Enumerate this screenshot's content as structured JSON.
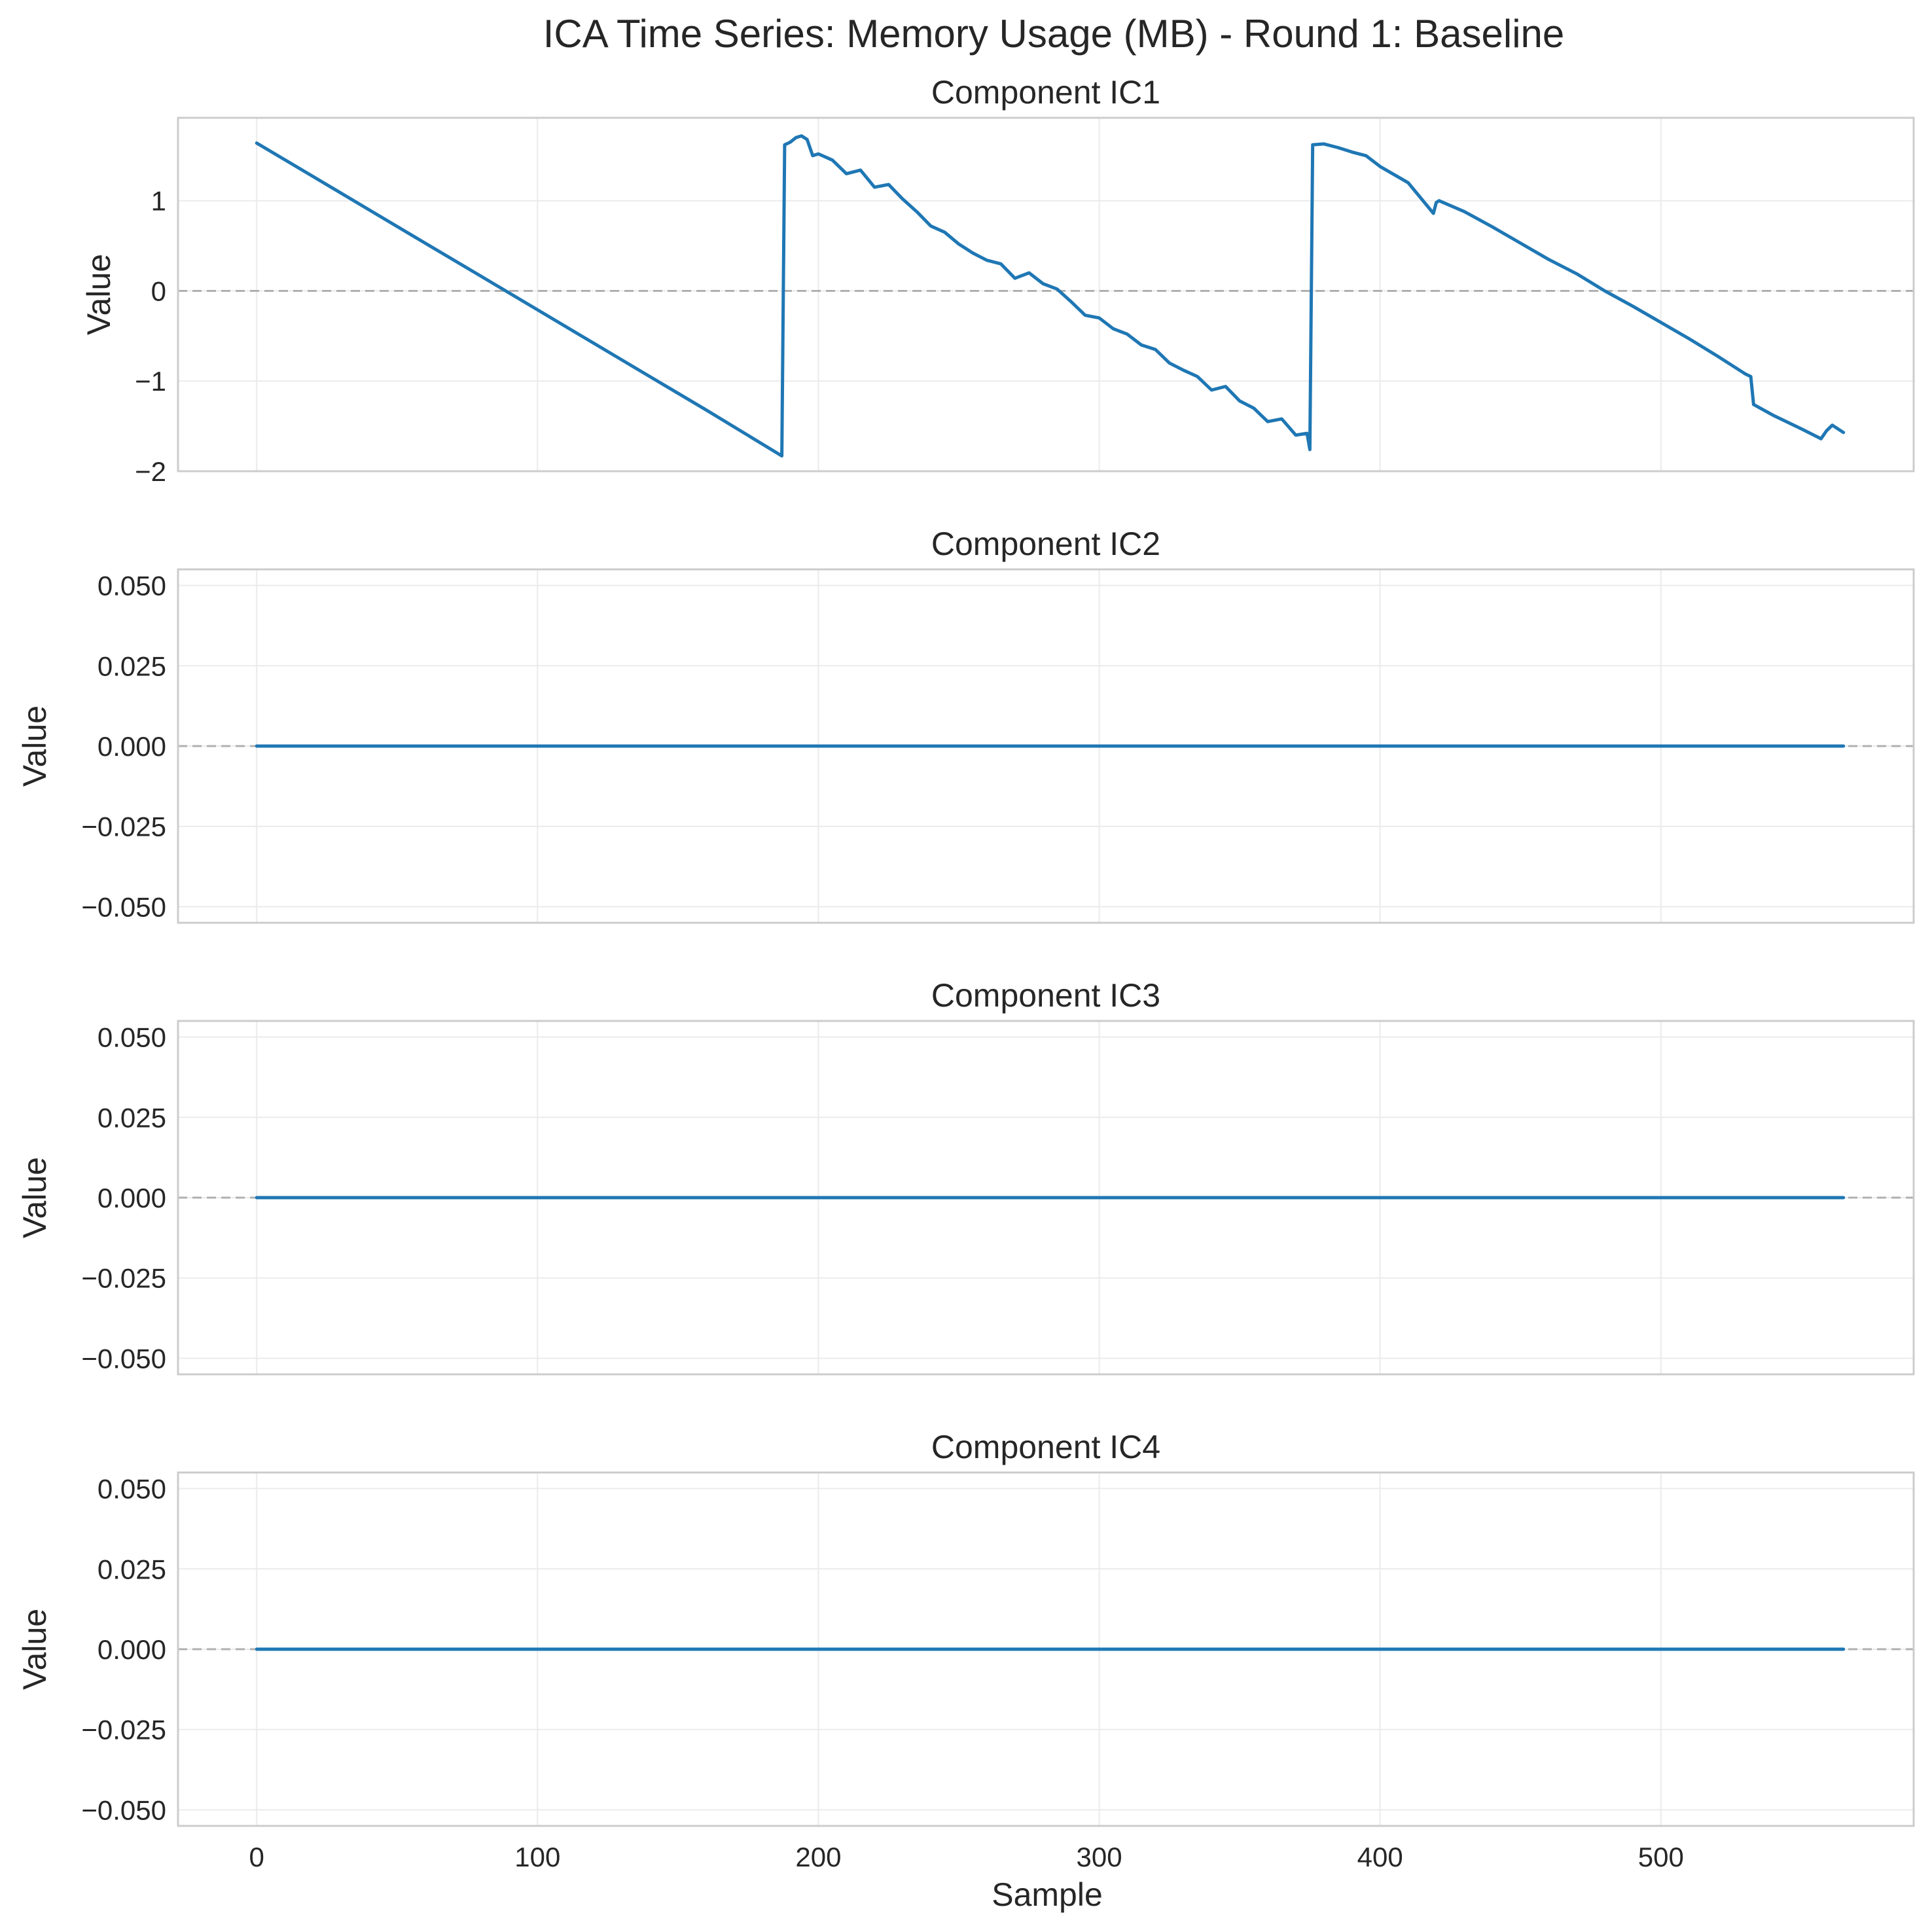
{
  "chart_data": {
    "type": "line",
    "title": "ICA Time Series: Memory Usage (MB) - Round 1: Baseline",
    "xlabel": "Sample",
    "x_ticks": [
      "0",
      "100",
      "200",
      "300",
      "400",
      "500"
    ],
    "xlim": [
      -28,
      590
    ],
    "grid": true,
    "line_color": "#1f77b4",
    "zero_line_color": "#b0b0b0",
    "panels": [
      {
        "title": "Component IC1",
        "ylabel": "Value",
        "ylim": [
          -2.0,
          1.92
        ],
        "y_ticks": [
          {
            "value": 1,
            "label": "1"
          },
          {
            "value": 0,
            "label": "0"
          },
          {
            "value": -1,
            "label": "−1"
          },
          {
            "value": -2,
            "label": "−2"
          }
        ],
        "x": [
          0,
          20,
          40,
          60,
          80,
          100,
          120,
          140,
          160,
          187,
          188,
          190,
          192,
          194,
          196,
          198,
          200,
          205,
          210,
          215,
          220,
          225,
          230,
          235,
          240,
          245,
          250,
          255,
          260,
          265,
          270,
          275,
          280,
          285,
          290,
          295,
          300,
          305,
          310,
          315,
          320,
          325,
          330,
          335,
          340,
          345,
          350,
          355,
          360,
          365,
          370,
          374,
          375,
          376,
          380,
          385,
          390,
          395,
          400,
          410,
          419,
          420,
          421,
          430,
          440,
          450,
          460,
          470,
          480,
          490,
          500,
          510,
          520,
          530,
          532,
          533,
          540,
          550,
          557,
          559,
          561,
          565
        ],
        "y": [
          1.64,
          1.27,
          0.9,
          0.53,
          0.16,
          -0.21,
          -0.58,
          -0.95,
          -1.32,
          -1.83,
          1.62,
          1.65,
          1.7,
          1.72,
          1.68,
          1.5,
          1.52,
          1.45,
          1.3,
          1.34,
          1.15,
          1.18,
          1.02,
          0.88,
          0.72,
          0.65,
          0.52,
          0.42,
          0.34,
          0.3,
          0.14,
          0.2,
          0.08,
          0.02,
          -0.12,
          -0.27,
          -0.3,
          -0.42,
          -0.48,
          -0.6,
          -0.65,
          -0.8,
          -0.88,
          -0.95,
          -1.1,
          -1.06,
          -1.22,
          -1.3,
          -1.45,
          -1.42,
          -1.6,
          -1.58,
          -1.76,
          1.62,
          1.63,
          1.59,
          1.54,
          1.5,
          1.38,
          1.2,
          0.86,
          0.98,
          1.0,
          0.88,
          0.71,
          0.53,
          0.35,
          0.19,
          0.0,
          -0.17,
          -0.35,
          -0.53,
          -0.72,
          -0.92,
          -0.95,
          -1.26,
          -1.38,
          -1.53,
          -1.64,
          -1.55,
          -1.49,
          -1.57
        ]
      },
      {
        "title": "Component IC2",
        "ylabel": "Value",
        "ylim": [
          -0.055,
          0.055
        ],
        "y_ticks": [
          {
            "value": 0.05,
            "label": "0.050"
          },
          {
            "value": 0.025,
            "label": "0.025"
          },
          {
            "value": 0,
            "label": "0.000"
          },
          {
            "value": -0.025,
            "label": "−0.025"
          },
          {
            "value": -0.05,
            "label": "−0.050"
          }
        ],
        "x": [
          0,
          565
        ],
        "y": [
          0,
          0
        ]
      },
      {
        "title": "Component IC3",
        "ylabel": "Value",
        "ylim": [
          -0.055,
          0.055
        ],
        "y_ticks": [
          {
            "value": 0.05,
            "label": "0.050"
          },
          {
            "value": 0.025,
            "label": "0.025"
          },
          {
            "value": 0,
            "label": "0.000"
          },
          {
            "value": -0.025,
            "label": "−0.025"
          },
          {
            "value": -0.05,
            "label": "−0.050"
          }
        ],
        "x": [
          0,
          565
        ],
        "y": [
          0,
          0
        ]
      },
      {
        "title": "Component IC4",
        "ylabel": "Value",
        "ylim": [
          -0.055,
          0.055
        ],
        "y_ticks": [
          {
            "value": 0.05,
            "label": "0.050"
          },
          {
            "value": 0.025,
            "label": "0.025"
          },
          {
            "value": 0,
            "label": "0.000"
          },
          {
            "value": -0.025,
            "label": "−0.025"
          },
          {
            "value": -0.05,
            "label": "−0.050"
          }
        ],
        "x": [
          0,
          565
        ],
        "y": [
          0,
          0
        ]
      }
    ]
  }
}
